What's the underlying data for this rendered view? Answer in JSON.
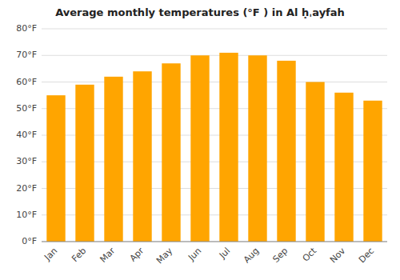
{
  "chart_data": {
    "type": "bar",
    "title": "Average monthly temperatures (°F ) in Al ḥˌayfah",
    "categories": [
      "Jan",
      "Feb",
      "Mar",
      "Apr",
      "May",
      "Jun",
      "Jul",
      "Aug",
      "Sep",
      "Oct",
      "Nov",
      "Dec"
    ],
    "values": [
      55,
      59,
      62,
      64,
      67,
      70,
      71,
      70,
      68,
      60,
      56,
      53
    ],
    "color": "#FFA500",
    "ylim": [
      0,
      80
    ],
    "yticks": [
      {
        "value": 0,
        "label": "0°F"
      },
      {
        "value": 10,
        "label": "10°F"
      },
      {
        "value": 20,
        "label": "20°F"
      },
      {
        "value": 30,
        "label": "30°F"
      },
      {
        "value": 40,
        "label": "40°F"
      },
      {
        "value": 50,
        "label": "50°F"
      },
      {
        "value": 60,
        "label": "60°F"
      },
      {
        "value": 70,
        "label": "70°F"
      },
      {
        "value": 80,
        "label": "80°F"
      }
    ],
    "grid": true
  }
}
